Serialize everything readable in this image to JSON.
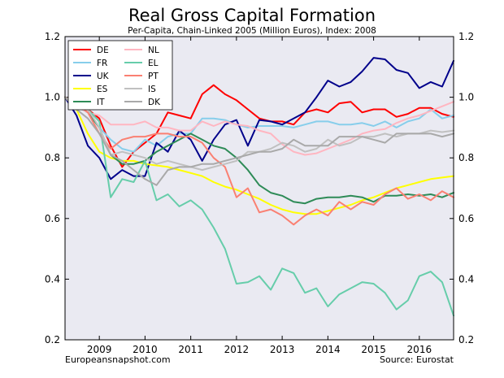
{
  "chart_data": {
    "type": "line",
    "title": "Real Gross Capital Formation",
    "subtitle": "Per-Capita, Chain-Linked 2005 (Million Euros), Index: 2008",
    "source_left": "Europeansnapshot.com",
    "source_right": "Source: Eurostat",
    "xlabel": "",
    "ylabel": "",
    "xlim": [
      2008.25,
      2016.75
    ],
    "ylim": [
      0.2,
      1.2
    ],
    "yticks": [
      "0.2",
      "0.4",
      "0.6",
      "0.8",
      "1.0",
      "1.2"
    ],
    "xticks": [
      "2009",
      "2010",
      "2011",
      "2012",
      "2013",
      "2014",
      "2015",
      "2016"
    ],
    "grid": false,
    "background": "#eaeaf2",
    "legend_position": "top-left",
    "x": [
      2008.25,
      2008.5,
      2008.75,
      2009.0,
      2009.25,
      2009.5,
      2009.75,
      2010.0,
      2010.25,
      2010.5,
      2010.75,
      2011.0,
      2011.25,
      2011.5,
      2011.75,
      2012.0,
      2012.25,
      2012.5,
      2012.75,
      2013.0,
      2013.25,
      2013.5,
      2013.75,
      2014.0,
      2014.25,
      2014.5,
      2014.75,
      2015.0,
      2015.25,
      2015.5,
      2015.75,
      2016.0,
      2016.25,
      2016.5,
      2016.75
    ],
    "series": [
      {
        "name": "DE",
        "color": "#ff0000",
        "values": [
          1.0,
          0.98,
          0.96,
          0.93,
          0.84,
          0.77,
          0.82,
          0.85,
          0.88,
          0.95,
          0.94,
          0.93,
          1.01,
          1.04,
          1.01,
          0.99,
          0.96,
          0.93,
          0.92,
          0.92,
          0.91,
          0.95,
          0.96,
          0.95,
          0.98,
          0.985,
          0.95,
          0.96,
          0.96,
          0.935,
          0.945,
          0.965,
          0.965,
          0.945,
          0.935
        ]
      },
      {
        "name": "FR",
        "color": "#87ceeb",
        "values": [
          1.0,
          0.97,
          0.95,
          0.9,
          0.86,
          0.83,
          0.82,
          0.86,
          0.84,
          0.87,
          0.88,
          0.88,
          0.93,
          0.93,
          0.925,
          0.91,
          0.9,
          0.905,
          0.905,
          0.905,
          0.9,
          0.91,
          0.92,
          0.92,
          0.91,
          0.91,
          0.915,
          0.905,
          0.92,
          0.9,
          0.92,
          0.93,
          0.96,
          0.93,
          0.94
        ]
      },
      {
        "name": "UK",
        "color": "#00008b",
        "values": [
          1.0,
          0.94,
          0.84,
          0.8,
          0.73,
          0.76,
          0.74,
          0.74,
          0.85,
          0.82,
          0.89,
          0.86,
          0.79,
          0.86,
          0.91,
          0.925,
          0.84,
          0.925,
          0.92,
          0.91,
          0.93,
          0.95,
          1.0,
          1.055,
          1.035,
          1.05,
          1.085,
          1.13,
          1.125,
          1.09,
          1.08,
          1.03,
          1.05,
          1.035,
          1.12
        ]
      },
      {
        "name": "ES",
        "color": "#ffff00",
        "values": [
          1.0,
          0.96,
          0.88,
          0.82,
          0.8,
          0.79,
          0.79,
          0.78,
          0.775,
          0.77,
          0.76,
          0.75,
          0.74,
          0.72,
          0.705,
          0.695,
          0.68,
          0.665,
          0.645,
          0.63,
          0.62,
          0.615,
          0.615,
          0.625,
          0.635,
          0.645,
          0.66,
          0.67,
          0.685,
          0.7,
          0.71,
          0.72,
          0.73,
          0.735,
          0.74
        ]
      },
      {
        "name": "IT",
        "color": "#2e8b57",
        "values": [
          1.0,
          0.97,
          0.95,
          0.9,
          0.81,
          0.78,
          0.78,
          0.79,
          0.82,
          0.84,
          0.86,
          0.88,
          0.86,
          0.84,
          0.83,
          0.8,
          0.76,
          0.71,
          0.685,
          0.675,
          0.655,
          0.65,
          0.665,
          0.67,
          0.67,
          0.675,
          0.67,
          0.655,
          0.675,
          0.675,
          0.68,
          0.675,
          0.68,
          0.67,
          0.685
        ]
      },
      {
        "name": "NL",
        "color": "#ffb6c1",
        "values": [
          1.0,
          0.97,
          0.95,
          0.94,
          0.91,
          0.91,
          0.91,
          0.92,
          0.9,
          0.9,
          0.89,
          0.89,
          0.92,
          0.905,
          0.92,
          0.91,
          0.905,
          0.89,
          0.88,
          0.845,
          0.82,
          0.81,
          0.815,
          0.83,
          0.845,
          0.86,
          0.88,
          0.89,
          0.895,
          0.915,
          0.93,
          0.94,
          0.955,
          0.97,
          0.985
        ]
      },
      {
        "name": "EL",
        "color": "#66cdaa",
        "values": [
          1.0,
          0.97,
          0.96,
          0.92,
          0.67,
          0.73,
          0.72,
          0.79,
          0.66,
          0.68,
          0.64,
          0.66,
          0.63,
          0.57,
          0.5,
          0.385,
          0.39,
          0.41,
          0.365,
          0.435,
          0.42,
          0.355,
          0.37,
          0.31,
          0.35,
          0.37,
          0.39,
          0.385,
          0.355,
          0.3,
          0.33,
          0.41,
          0.425,
          0.39,
          0.28
        ]
      },
      {
        "name": "PT",
        "color": "#fa8072",
        "values": [
          1.0,
          0.98,
          0.95,
          0.88,
          0.83,
          0.86,
          0.87,
          0.87,
          0.88,
          0.88,
          0.87,
          0.87,
          0.85,
          0.8,
          0.77,
          0.67,
          0.7,
          0.62,
          0.63,
          0.61,
          0.58,
          0.61,
          0.63,
          0.61,
          0.655,
          0.63,
          0.655,
          0.645,
          0.68,
          0.7,
          0.665,
          0.68,
          0.66,
          0.69,
          0.67
        ]
      },
      {
        "name": "IS",
        "color": "#c0c0c0",
        "values": [
          1.0,
          0.98,
          0.96,
          0.9,
          0.81,
          0.82,
          0.81,
          0.8,
          0.78,
          0.79,
          0.78,
          0.77,
          0.76,
          0.77,
          0.78,
          0.79,
          0.82,
          0.82,
          0.83,
          0.85,
          0.84,
          0.82,
          0.83,
          0.86,
          0.84,
          0.85,
          0.87,
          0.87,
          0.88,
          0.87,
          0.88,
          0.88,
          0.89,
          0.885,
          0.89
        ]
      },
      {
        "name": "DK",
        "color": "#a9a9a9",
        "values": [
          1.0,
          0.96,
          0.93,
          0.88,
          0.81,
          0.79,
          0.76,
          0.73,
          0.71,
          0.76,
          0.77,
          0.77,
          0.78,
          0.78,
          0.79,
          0.8,
          0.81,
          0.82,
          0.82,
          0.83,
          0.86,
          0.84,
          0.84,
          0.84,
          0.87,
          0.87,
          0.87,
          0.86,
          0.85,
          0.88,
          0.88,
          0.88,
          0.88,
          0.87,
          0.88
        ]
      }
    ]
  }
}
